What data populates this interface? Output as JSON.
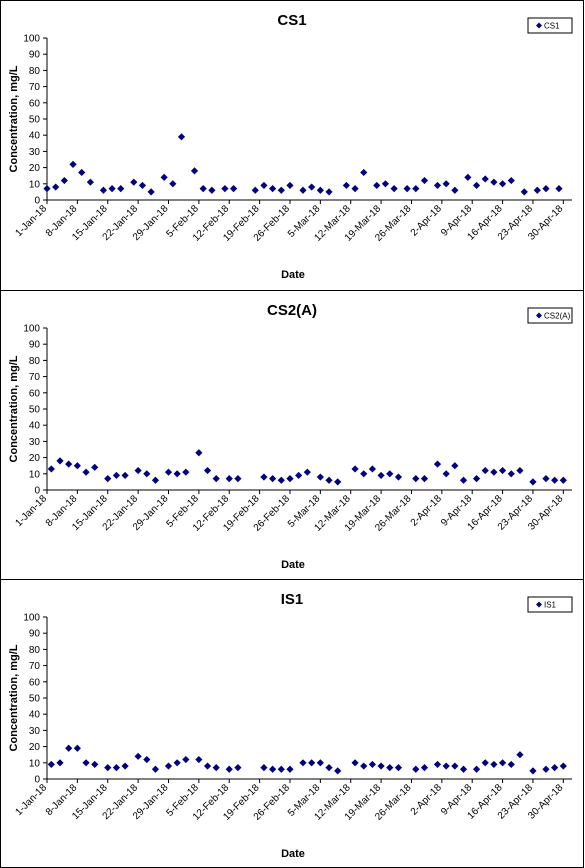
{
  "chart_data": [
    {
      "type": "scatter",
      "title": "CS1",
      "xlabel": "Date",
      "ylabel": "Concentration, mg/L",
      "ylim": [
        0,
        100
      ],
      "yticks": [
        0,
        10,
        20,
        30,
        40,
        50,
        60,
        70,
        80,
        90,
        100
      ],
      "xlim": [
        "2018-01-01",
        "2018-05-02"
      ],
      "x_tick_labels": [
        "1-Jan-18",
        "8-Jan-18",
        "15-Jan-18",
        "22-Jan-18",
        "29-Jan-18",
        "5-Feb-18",
        "12-Feb-18",
        "19-Feb-18",
        "26-Feb-18",
        "5-Mar-18",
        "12-Mar-18",
        "19-Mar-18",
        "26-Mar-18",
        "2-Apr-18",
        "9-Apr-18",
        "16-Apr-18",
        "23-Apr-18",
        "30-Apr-18"
      ],
      "legend_position": "top-right",
      "marker_color": "#000080",
      "series": [
        {
          "name": "CS1",
          "x": [
            "2018-01-01",
            "2018-01-03",
            "2018-01-05",
            "2018-01-07",
            "2018-01-09",
            "2018-01-11",
            "2018-01-14",
            "2018-01-16",
            "2018-01-18",
            "2018-01-21",
            "2018-01-23",
            "2018-01-25",
            "2018-01-28",
            "2018-01-30",
            "2018-02-01",
            "2018-02-04",
            "2018-02-06",
            "2018-02-08",
            "2018-02-11",
            "2018-02-13",
            "2018-02-18",
            "2018-02-20",
            "2018-02-22",
            "2018-02-24",
            "2018-02-26",
            "2018-03-01",
            "2018-03-03",
            "2018-03-05",
            "2018-03-07",
            "2018-03-11",
            "2018-03-13",
            "2018-03-15",
            "2018-03-18",
            "2018-03-20",
            "2018-03-22",
            "2018-03-25",
            "2018-03-27",
            "2018-03-29",
            "2018-04-01",
            "2018-04-03",
            "2018-04-05",
            "2018-04-08",
            "2018-04-10",
            "2018-04-12",
            "2018-04-14",
            "2018-04-16",
            "2018-04-18",
            "2018-04-21",
            "2018-04-24",
            "2018-04-26",
            "2018-04-29"
          ],
          "values": [
            7,
            8,
            12,
            22,
            17,
            11,
            6,
            7,
            7,
            11,
            9,
            5,
            14,
            10,
            39,
            18,
            7,
            6,
            7,
            7,
            6,
            9,
            7,
            6,
            9,
            6,
            8,
            6,
            5,
            9,
            7,
            17,
            9,
            10,
            7,
            7,
            7,
            12,
            9,
            10,
            6,
            14,
            9,
            13,
            11,
            10,
            12,
            5,
            6,
            7,
            7
          ]
        }
      ]
    },
    {
      "type": "scatter",
      "title": "CS2(A)",
      "xlabel": "Date",
      "ylabel": "Concentration, mg/L",
      "ylim": [
        0,
        100
      ],
      "yticks": [
        0,
        10,
        20,
        30,
        40,
        50,
        60,
        70,
        80,
        90,
        100
      ],
      "xlim": [
        "2018-01-01",
        "2018-05-02"
      ],
      "x_tick_labels": [
        "1-Jan-18",
        "8-Jan-18",
        "15-Jan-18",
        "22-Jan-18",
        "29-Jan-18",
        "5-Feb-18",
        "12-Feb-18",
        "19-Feb-18",
        "26-Feb-18",
        "5-Mar-18",
        "12-Mar-18",
        "19-Mar-18",
        "26-Mar-18",
        "2-Apr-18",
        "9-Apr-18",
        "16-Apr-18",
        "23-Apr-18",
        "30-Apr-18"
      ],
      "legend_position": "top-right",
      "marker_color": "#000080",
      "series": [
        {
          "name": "CS2(A)",
          "x": [
            "2018-01-02",
            "2018-01-04",
            "2018-01-06",
            "2018-01-08",
            "2018-01-10",
            "2018-01-12",
            "2018-01-15",
            "2018-01-17",
            "2018-01-19",
            "2018-01-22",
            "2018-01-24",
            "2018-01-26",
            "2018-01-29",
            "2018-01-31",
            "2018-02-02",
            "2018-02-05",
            "2018-02-07",
            "2018-02-09",
            "2018-02-12",
            "2018-02-14",
            "2018-02-20",
            "2018-02-22",
            "2018-02-24",
            "2018-02-26",
            "2018-02-28",
            "2018-03-02",
            "2018-03-05",
            "2018-03-07",
            "2018-03-09",
            "2018-03-13",
            "2018-03-15",
            "2018-03-17",
            "2018-03-19",
            "2018-03-21",
            "2018-03-23",
            "2018-03-27",
            "2018-03-29",
            "2018-04-01",
            "2018-04-03",
            "2018-04-05",
            "2018-04-07",
            "2018-04-10",
            "2018-04-12",
            "2018-04-14",
            "2018-04-16",
            "2018-04-18",
            "2018-04-20",
            "2018-04-23",
            "2018-04-26",
            "2018-04-28",
            "2018-04-30"
          ],
          "values": [
            13,
            18,
            16,
            15,
            11,
            14,
            7,
            9,
            9,
            12,
            10,
            6,
            11,
            10,
            11,
            23,
            12,
            7,
            7,
            7,
            8,
            7,
            6,
            7,
            9,
            11,
            8,
            6,
            5,
            13,
            10,
            13,
            9,
            10,
            8,
            7,
            7,
            16,
            10,
            15,
            6,
            7,
            12,
            11,
            12,
            10,
            12,
            5,
            7,
            6,
            6
          ]
        }
      ]
    },
    {
      "type": "scatter",
      "title": "IS1",
      "xlabel": "Date",
      "ylabel": "Concentration, mg/L",
      "ylim": [
        0,
        100
      ],
      "yticks": [
        0,
        10,
        20,
        30,
        40,
        50,
        60,
        70,
        80,
        90,
        100
      ],
      "xlim": [
        "2018-01-01",
        "2018-05-02"
      ],
      "x_tick_labels": [
        "1-Jan-18",
        "8-Jan-18",
        "15-Jan-18",
        "22-Jan-18",
        "29-Jan-18",
        "5-Feb-18",
        "12-Feb-18",
        "19-Feb-18",
        "26-Feb-18",
        "5-Mar-18",
        "12-Mar-18",
        "19-Mar-18",
        "26-Mar-18",
        "2-Apr-18",
        "9-Apr-18",
        "16-Apr-18",
        "23-Apr-18",
        "30-Apr-18"
      ],
      "legend_position": "top-right",
      "marker_color": "#000080",
      "series": [
        {
          "name": "IS1",
          "x": [
            "2018-01-02",
            "2018-01-04",
            "2018-01-06",
            "2018-01-08",
            "2018-01-10",
            "2018-01-12",
            "2018-01-15",
            "2018-01-17",
            "2018-01-19",
            "2018-01-22",
            "2018-01-24",
            "2018-01-26",
            "2018-01-29",
            "2018-01-31",
            "2018-02-02",
            "2018-02-05",
            "2018-02-07",
            "2018-02-09",
            "2018-02-12",
            "2018-02-14",
            "2018-02-20",
            "2018-02-22",
            "2018-02-24",
            "2018-02-26",
            "2018-03-01",
            "2018-03-03",
            "2018-03-05",
            "2018-03-07",
            "2018-03-09",
            "2018-03-13",
            "2018-03-15",
            "2018-03-17",
            "2018-03-19",
            "2018-03-21",
            "2018-03-23",
            "2018-03-27",
            "2018-03-29",
            "2018-04-01",
            "2018-04-03",
            "2018-04-05",
            "2018-04-07",
            "2018-04-10",
            "2018-04-12",
            "2018-04-14",
            "2018-04-16",
            "2018-04-18",
            "2018-04-20",
            "2018-04-23",
            "2018-04-26",
            "2018-04-28",
            "2018-04-30"
          ],
          "values": [
            9,
            10,
            19,
            19,
            10,
            9,
            7,
            7,
            8,
            14,
            12,
            6,
            8,
            10,
            12,
            12,
            8,
            7,
            6,
            7,
            7,
            6,
            6,
            6,
            10,
            10,
            10,
            7,
            5,
            10,
            8,
            9,
            8,
            7,
            7,
            6,
            7,
            9,
            8,
            8,
            6,
            6,
            10,
            9,
            10,
            9,
            15,
            5,
            6,
            7,
            8
          ]
        }
      ]
    }
  ]
}
